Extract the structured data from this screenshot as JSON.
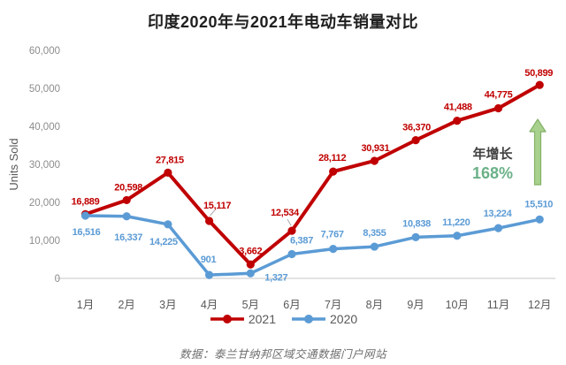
{
  "title": "印度2020年与2021年电动车销量对比",
  "source": "数据：泰兰甘纳邦区域交通数据门户网站",
  "annotation": {
    "label": "年增长",
    "value": "168%"
  },
  "colors": {
    "red": "#C00000",
    "blue": "#5B9BD5",
    "green_text": "#6BB188",
    "arrow_fill": "#A9D18E",
    "arrow_stroke": "#82B166",
    "tick_text": "#8c8c8c",
    "axis_text": "#595959",
    "baseline": "#d9d9d9",
    "leader": "#aaaaaa"
  },
  "chart_data": {
    "type": "line",
    "title": "印度2020年与2021年电动车销量对比",
    "categories": [
      "1月",
      "2月",
      "3月",
      "4月",
      "5月",
      "6月",
      "7月",
      "8月",
      "9月",
      "10月",
      "11月",
      "12月"
    ],
    "xlabel": "",
    "ylabel": "Units Sold",
    "ylim": [
      0,
      60000
    ],
    "ytick_step": 10000,
    "yticks": [
      "0",
      "10,000",
      "20,000",
      "30,000",
      "40,000",
      "50,000",
      "60,000"
    ],
    "grid": false,
    "legend_position": "bottom",
    "series": [
      {
        "name": "2021",
        "values": [
          16889,
          20598,
          27815,
          15117,
          3662,
          12534,
          28112,
          30931,
          36370,
          41488,
          44775,
          50899
        ]
      },
      {
        "name": "2020",
        "values": [
          16516,
          16337,
          14225,
          901,
          1327,
          6387,
          7767,
          8355,
          10838,
          11220,
          13224,
          15510
        ]
      }
    ],
    "annotation": {
      "label": "年增长",
      "value": "168%"
    }
  }
}
